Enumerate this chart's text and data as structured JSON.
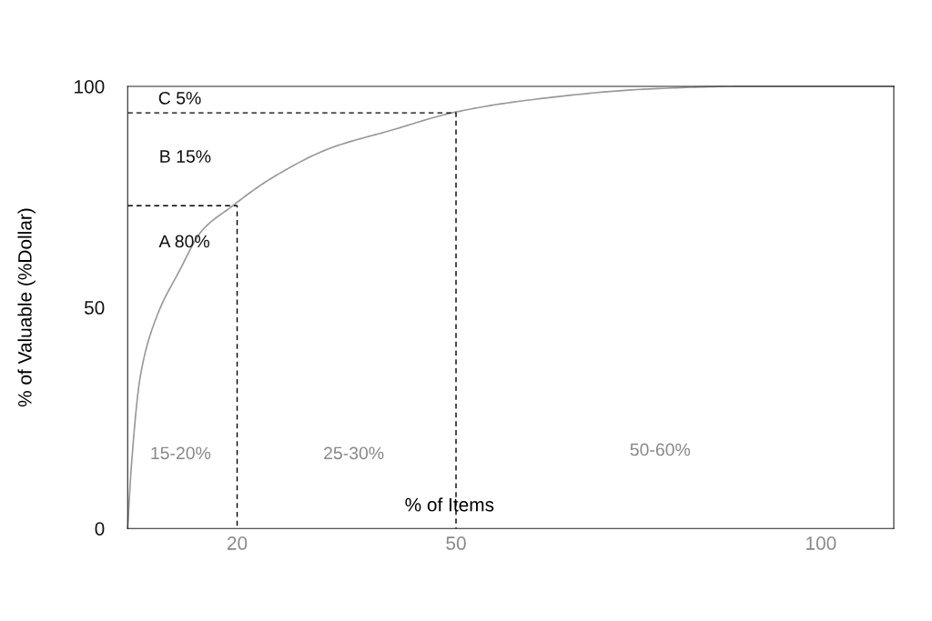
{
  "chart_data": {
    "type": "line",
    "xlabel": "% of Items",
    "ylabel": "% of Valuable (%Dollar)",
    "xlim": [
      5,
      110
    ],
    "ylim": [
      0,
      100
    ],
    "xticks": [
      20,
      50,
      100
    ],
    "yticks": [
      0,
      50,
      100
    ],
    "grid": false,
    "marker": "none",
    "series": [
      {
        "color": "#999999",
        "line_style": "solid",
        "x": [
          5,
          5.5,
          6.75,
          9,
          12,
          15.25,
          19,
          24.5,
          32.75,
          41,
          50,
          60,
          76.5,
          89,
          110
        ],
        "values": [
          0,
          14,
          34.6,
          48,
          58,
          67.5,
          72.5,
          79,
          86,
          90,
          94.2,
          96.9,
          99.4,
          100,
          100
        ]
      },
      {
        "color": "#000000",
        "line_style": "dashed",
        "x": [
          5,
          20,
          20
        ],
        "values": [
          73,
          73,
          0
        ]
      },
      {
        "color": "#000000",
        "line_style": "dashed",
        "x": [
          5,
          50,
          50
        ],
        "values": [
          94,
          94,
          0
        ]
      }
    ],
    "annotations": [
      "C 5%",
      "B 15%",
      "A 80%",
      "15-20%",
      "25-30%",
      "50-60%"
    ]
  }
}
